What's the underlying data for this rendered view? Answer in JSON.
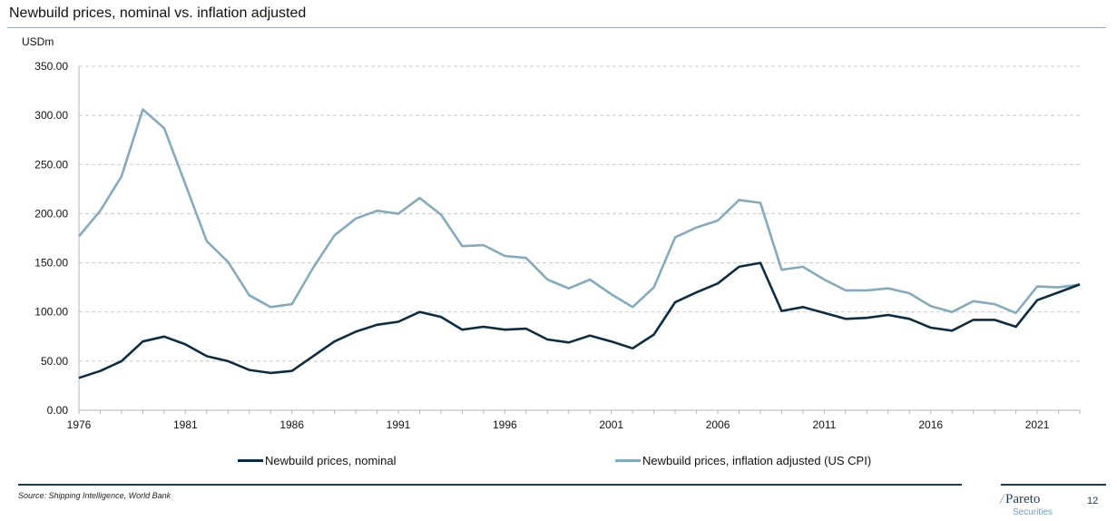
{
  "slide": {
    "title": "Newbuild prices, nominal vs. inflation adjusted",
    "source": "Source: Shipping Intelligence, World Bank",
    "page_number": "12",
    "logo_name": "Pareto",
    "logo_sub": "Securities"
  },
  "colors": {
    "nominal": "#0d2c44",
    "inflation_adjusted": "#86aabd",
    "grid": "#c8c8c8",
    "axis": "#b5b5b5",
    "rule": "#1c3c55"
  },
  "chart_data": {
    "type": "line",
    "title": "Newbuild prices, nominal vs. inflation adjusted",
    "ylabel": "USDm",
    "xlabel": "",
    "ylim": [
      0,
      350
    ],
    "xlim": [
      1976,
      2023
    ],
    "y_ticks": [
      "0.00",
      "50.00",
      "100.00",
      "150.00",
      "200.00",
      "250.00",
      "300.00",
      "350.00"
    ],
    "x_ticks": [
      "1976",
      "1981",
      "1986",
      "1991",
      "1996",
      "2001",
      "2006",
      "2011",
      "2016",
      "2021"
    ],
    "grid": true,
    "legend_position": "bottom",
    "x": [
      1976,
      1977,
      1978,
      1979,
      1980,
      1981,
      1982,
      1983,
      1984,
      1985,
      1986,
      1987,
      1988,
      1989,
      1990,
      1991,
      1992,
      1993,
      1994,
      1995,
      1996,
      1997,
      1998,
      1999,
      2000,
      2001,
      2002,
      2003,
      2004,
      2005,
      2006,
      2007,
      2008,
      2009,
      2010,
      2011,
      2012,
      2013,
      2014,
      2015,
      2016,
      2017,
      2018,
      2019,
      2020,
      2021,
      2022,
      2023
    ],
    "series": [
      {
        "name": "Newbuild prices, nominal",
        "values": [
          33,
          40,
          50,
          70,
          75,
          67,
          55,
          50,
          41,
          38,
          40,
          55,
          70,
          80,
          87,
          90,
          100,
          95,
          82,
          85,
          82,
          83,
          72,
          69,
          76,
          70,
          63,
          77,
          110,
          120,
          129,
          146,
          150,
          101,
          105,
          99,
          93,
          94,
          97,
          93,
          84,
          81,
          92,
          92,
          85,
          112,
          120,
          128
        ]
      },
      {
        "name": "Newbuild prices, inflation adjusted (US CPI)",
        "values": [
          177,
          203,
          238,
          306,
          287,
          230,
          172,
          151,
          117,
          105,
          108,
          145,
          178,
          195,
          203,
          200,
          216,
          199,
          167,
          168,
          157,
          155,
          133,
          124,
          133,
          118,
          105,
          125,
          176,
          186,
          193,
          214,
          211,
          143,
          146,
          133,
          122,
          122,
          124,
          119,
          106,
          100,
          111,
          108,
          99,
          126,
          125,
          128
        ]
      }
    ]
  }
}
